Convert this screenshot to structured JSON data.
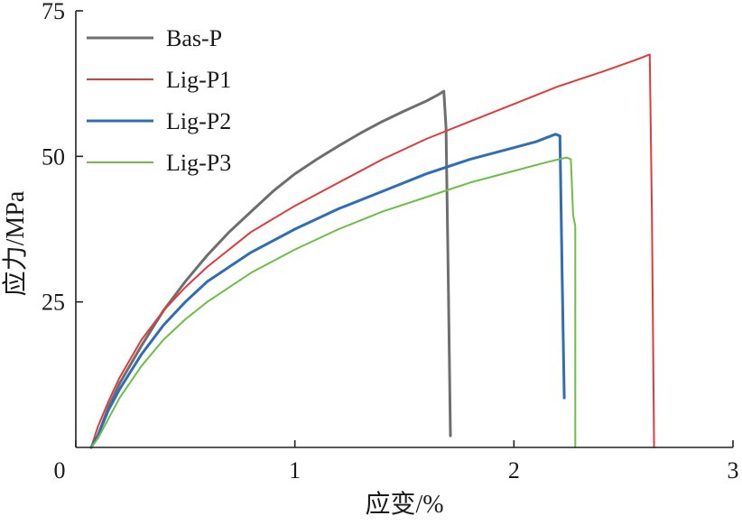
{
  "chart_data": {
    "type": "line",
    "xlabel": "应变/%",
    "ylabel": "应力/MPa",
    "xlim": [
      0,
      3
    ],
    "ylim": [
      0,
      75
    ],
    "xticks": [
      0,
      1,
      2,
      3
    ],
    "xtick_labels": [
      "0",
      "1",
      "2",
      "3"
    ],
    "yticks": [
      25,
      50,
      75
    ],
    "ytick_labels": [
      "25",
      "50",
      "75"
    ],
    "grid": false,
    "legend_position": "top-left",
    "series": [
      {
        "name": "Bas-P",
        "color": "#6e6e6e",
        "width": 3,
        "x": [
          0.07,
          0.1,
          0.15,
          0.2,
          0.3,
          0.4,
          0.5,
          0.6,
          0.7,
          0.8,
          0.9,
          1.0,
          1.1,
          1.2,
          1.3,
          1.4,
          1.5,
          1.6,
          1.65,
          1.68,
          1.69,
          1.7,
          1.71
        ],
        "y": [
          0.0,
          2.0,
          7.0,
          11.0,
          17.5,
          23.5,
          28.5,
          33.0,
          37.0,
          40.5,
          44.0,
          47.0,
          49.5,
          51.8,
          54.0,
          56.0,
          57.8,
          59.5,
          60.5,
          61.2,
          55.0,
          30.0,
          2.0
        ]
      },
      {
        "name": "Lig-P1",
        "color": "#e03b3b",
        "width": 2,
        "x": [
          0.07,
          0.1,
          0.15,
          0.2,
          0.3,
          0.4,
          0.5,
          0.6,
          0.8,
          1.0,
          1.2,
          1.4,
          1.6,
          1.8,
          2.0,
          2.2,
          2.4,
          2.55,
          2.62,
          2.63,
          2.64
        ],
        "y": [
          0.0,
          3.5,
          8.0,
          12.0,
          18.5,
          23.5,
          27.5,
          31.0,
          37.0,
          41.5,
          45.5,
          49.5,
          53.0,
          56.0,
          59.0,
          62.0,
          64.5,
          66.5,
          67.5,
          40.0,
          0.0
        ]
      },
      {
        "name": "Lig-P2",
        "color": "#2f6db5",
        "width": 3,
        "x": [
          0.07,
          0.1,
          0.15,
          0.2,
          0.3,
          0.4,
          0.5,
          0.6,
          0.8,
          1.0,
          1.2,
          1.4,
          1.6,
          1.8,
          2.0,
          2.1,
          2.19,
          2.21,
          2.22,
          2.23
        ],
        "y": [
          0.0,
          2.0,
          6.5,
          10.0,
          16.0,
          21.0,
          25.0,
          28.5,
          33.5,
          37.5,
          41.0,
          44.0,
          47.0,
          49.5,
          51.5,
          52.5,
          53.8,
          53.5,
          30.0,
          8.5
        ]
      },
      {
        "name": "Lig-P3",
        "color": "#6cbf45",
        "width": 2,
        "x": [
          0.07,
          0.1,
          0.15,
          0.2,
          0.3,
          0.4,
          0.5,
          0.6,
          0.8,
          1.0,
          1.2,
          1.4,
          1.6,
          1.8,
          2.0,
          2.15,
          2.24,
          2.26,
          2.27,
          2.28,
          2.28
        ],
        "y": [
          0.0,
          1.5,
          5.0,
          8.5,
          14.0,
          18.5,
          22.0,
          25.0,
          30.0,
          34.0,
          37.5,
          40.5,
          43.0,
          45.5,
          47.5,
          49.0,
          49.8,
          49.5,
          40.0,
          38.0,
          0.0
        ]
      }
    ]
  }
}
